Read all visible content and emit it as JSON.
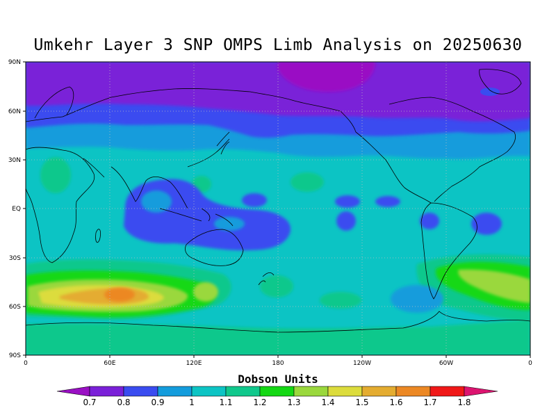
{
  "title": "Umkehr Layer 3 SNP OMPS Limb Analysis on 20250630",
  "axes": {
    "lat_labels": [
      "90N",
      "60N",
      "30N",
      "EQ",
      "30S",
      "60S",
      "90S"
    ],
    "lon_labels": [
      "0",
      "60E",
      "120E",
      "180",
      "120W",
      "60W",
      "0"
    ],
    "grid": "dotted"
  },
  "colorbar": {
    "title": "Dobson Units",
    "ticks": [
      "0.7",
      "0.8",
      "0.9",
      "1",
      "1.1",
      "1.2",
      "1.3",
      "1.4",
      "1.5",
      "1.6",
      "1.7",
      "1.8"
    ],
    "colors": [
      "#9a10c4",
      "#7a20d8",
      "#3a4cf0",
      "#139cdc",
      "#0cc4c4",
      "#10c88c",
      "#14d814",
      "#9ad83c",
      "#dcdc3c",
      "#e4ac30",
      "#ec8824",
      "#f01818",
      "#dc1470"
    ]
  },
  "chart_data": {
    "type": "heatmap",
    "title": "Umkehr Layer 3 SNP OMPS Limb Analysis on 20250630",
    "units": "Dobson Units",
    "value_range": [
      0.7,
      1.8
    ],
    "lon_range": [
      0,
      360
    ],
    "lat_range": [
      -90,
      90
    ],
    "features": [
      {
        "region": "Arctic",
        "value": 0.7
      },
      {
        "region": "Northern mid-latitudes",
        "value": 0.8
      },
      {
        "region": "Tropical Indian Ocean / Maritime Continent",
        "value": 0.9
      },
      {
        "region": "Tropics and subtropics",
        "value": 1.0
      },
      {
        "region": "Southern mid-latitudes",
        "value": 1.1
      },
      {
        "region": "South Indian Ocean maximum",
        "value": 1.6
      },
      {
        "region": "South Atlantic",
        "value": 1.4
      },
      {
        "region": "Antarctica",
        "value": 1.1
      }
    ]
  }
}
